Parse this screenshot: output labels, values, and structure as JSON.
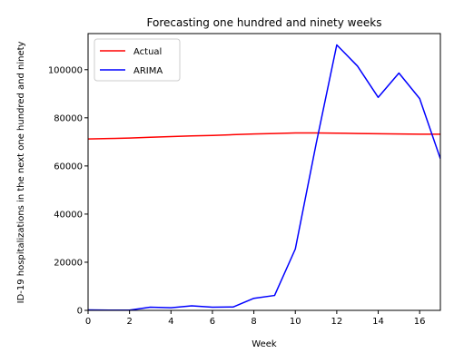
{
  "chart_data": {
    "type": "line",
    "title": "Forecasting one hundred and ninety weeks",
    "xlabel": "Week",
    "ylabel": "ID-19 hospitalizations in the next one hundred and ninety",
    "xlim": [
      0,
      17
    ],
    "ylim": [
      0,
      115000
    ],
    "xticks": [
      0,
      2,
      4,
      6,
      8,
      10,
      12,
      14,
      16
    ],
    "yticks": [
      0,
      20000,
      40000,
      60000,
      80000,
      100000
    ],
    "grid": false,
    "legend": "top-left",
    "series": [
      {
        "name": "Actual",
        "color": "#ff0000",
        "x": [
          0,
          1,
          2,
          3,
          4,
          5,
          6,
          7,
          8,
          9,
          10,
          11,
          12,
          13,
          14,
          15,
          16,
          17
        ],
        "y": [
          71200,
          71400,
          71600,
          71900,
          72200,
          72500,
          72700,
          73000,
          73300,
          73500,
          73700,
          73700,
          73600,
          73500,
          73400,
          73300,
          73200,
          73200
        ]
      },
      {
        "name": "ARIMA",
        "color": "#0000ff",
        "x": [
          0,
          1,
          2,
          3,
          4,
          5,
          6,
          7,
          8,
          9,
          10,
          11,
          12,
          13,
          14,
          15,
          16,
          17
        ],
        "y": [
          200,
          100,
          100,
          1300,
          1100,
          1900,
          1300,
          1400,
          5000,
          6200,
          25500,
          69000,
          110300,
          101500,
          88500,
          98600,
          88000,
          63000
        ]
      }
    ]
  }
}
